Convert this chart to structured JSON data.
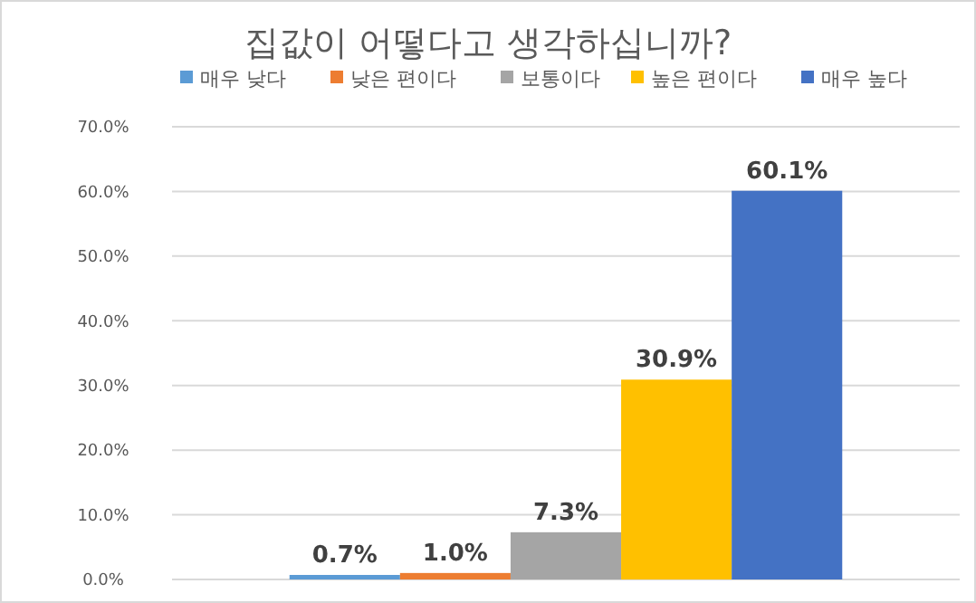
{
  "chart_data": {
    "type": "bar",
    "title": "집값이 어떻다고 생각하십니까?",
    "categories": [
      null
    ],
    "series": [
      {
        "name": "매우 낮다",
        "color": "#5b9bd5",
        "values": [
          0.7
        ],
        "value_labels": [
          "0.7%"
        ]
      },
      {
        "name": "낮은 편이다",
        "color": "#ed7d31",
        "values": [
          1.0
        ],
        "value_labels": [
          "1.0%"
        ]
      },
      {
        "name": "보통이다",
        "color": "#a5a5a5",
        "values": [
          7.3
        ],
        "value_labels": [
          "7.3%"
        ]
      },
      {
        "name": "높은 편이다",
        "color": "#ffc000",
        "values": [
          30.9
        ],
        "value_labels": [
          "30.9%"
        ]
      },
      {
        "name": "매우 높다",
        "color": "#4472c4",
        "values": [
          60.1
        ],
        "value_labels": [
          "60.1%"
        ]
      }
    ],
    "ylim": [
      0,
      70
    ],
    "yticks": [
      {
        "value": 0,
        "label": "0.0%"
      },
      {
        "value": 10,
        "label": "10.0%"
      },
      {
        "value": 20,
        "label": "20.0%"
      },
      {
        "value": 30,
        "label": "30.0%"
      },
      {
        "value": 40,
        "label": "40.0%"
      },
      {
        "value": 50,
        "label": "50.0%"
      },
      {
        "value": 60,
        "label": "60.0%"
      },
      {
        "value": 70,
        "label": "70.0%"
      }
    ],
    "grid": "y",
    "legend": "top"
  }
}
